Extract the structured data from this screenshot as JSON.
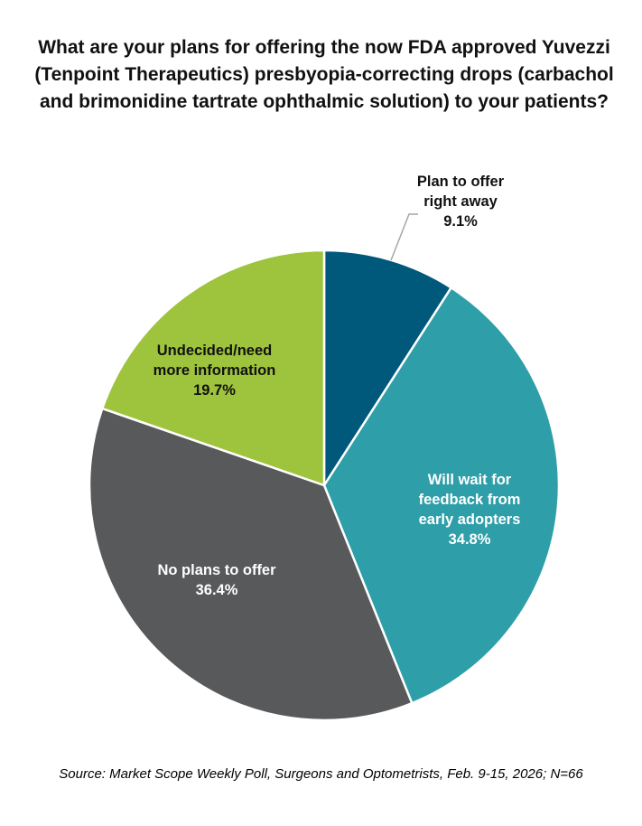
{
  "chart_data": {
    "type": "pie",
    "title": "What are your plans for offering the now FDA approved Yuvezzi (Tenpoint Therapeutics) presbyopia-correcting drops (carbachol and brimonidine tartrate ophthalmic solution) to your patients?",
    "slices": [
      {
        "label": "Plan to offer right away",
        "value": 9.1,
        "value_label": "9.1%",
        "color": "#00587a",
        "text_color": "#111111"
      },
      {
        "label": "Will wait for feedback from early adopters",
        "value": 34.8,
        "value_label": "34.8%",
        "color": "#2e9ea8",
        "text_color": "#ffffff"
      },
      {
        "label": "No plans to offer",
        "value": 36.4,
        "value_label": "36.4%",
        "color": "#58595b",
        "text_color": "#ffffff"
      },
      {
        "label": "Undecided/need more information",
        "value": 19.7,
        "value_label": "19.7%",
        "color": "#9ec33d",
        "text_color": "#111111"
      }
    ],
    "source": "Source: Market Scope Weekly Poll, Surgeons and Optometrists, Feb. 9-15, 2026; N=66"
  }
}
